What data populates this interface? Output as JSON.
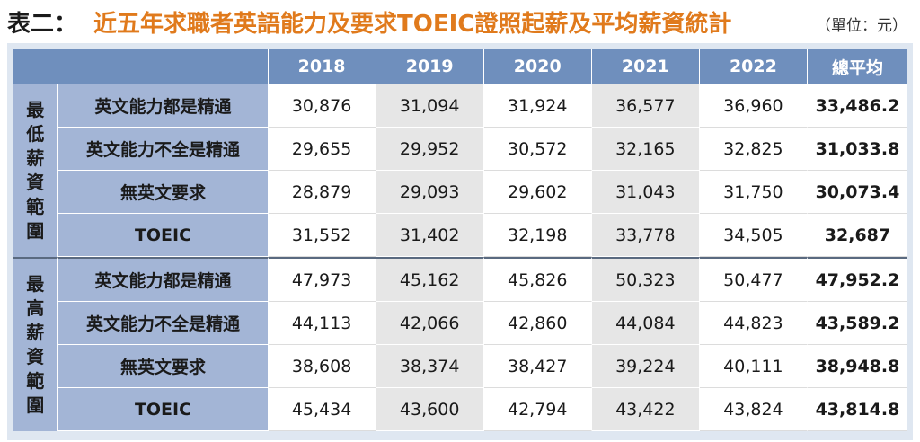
{
  "title": {
    "prefix": "表二：",
    "main": "近五年求職者英語能力及要求TOEIC證照起薪及平均薪資統計",
    "unit": "（單位：元）"
  },
  "colors": {
    "title_accent": "#e07a1c",
    "header_bg": "#6f8fbd",
    "label_bg": "#a3b5d6",
    "alt_cell_bg": "#e6e6e6"
  },
  "table": {
    "columns": [
      "2018",
      "2019",
      "2020",
      "2021",
      "2022",
      "總平均"
    ],
    "groups": [
      {
        "label_chars": [
          "最",
          "低",
          "薪",
          "資",
          "範",
          "圍"
        ],
        "rows": [
          {
            "label": "英文能力都是精通",
            "values": [
              "30,876",
              "31,094",
              "31,924",
              "36,577",
              "36,960"
            ],
            "avg": "33,486.2"
          },
          {
            "label": "英文能力不全是精通",
            "values": [
              "29,655",
              "29,952",
              "30,572",
              "32,165",
              "32,825"
            ],
            "avg": "31,033.8"
          },
          {
            "label": "無英文要求",
            "values": [
              "28,879",
              "29,093",
              "29,602",
              "31,043",
              "31,750"
            ],
            "avg": "30,073.4"
          },
          {
            "label": "TOEIC",
            "values": [
              "31,552",
              "31,402",
              "32,198",
              "33,778",
              "34,505"
            ],
            "avg": "32,687"
          }
        ]
      },
      {
        "label_chars": [
          "最",
          "高",
          "薪",
          "資",
          "範",
          "圍"
        ],
        "rows": [
          {
            "label": "英文能力都是精通",
            "values": [
              "47,973",
              "45,162",
              "45,826",
              "50,323",
              "50,477"
            ],
            "avg": "47,952.2"
          },
          {
            "label": "英文能力不全是精通",
            "values": [
              "44,113",
              "42,066",
              "42,860",
              "44,084",
              "44,823"
            ],
            "avg": "43,589.2"
          },
          {
            "label": "無英文要求",
            "values": [
              "38,608",
              "38,374",
              "38,427",
              "39,224",
              "40,111"
            ],
            "avg": "38,948.8"
          },
          {
            "label": "TOEIC",
            "values": [
              "45,434",
              "43,600",
              "42,794",
              "43,422",
              "43,824"
            ],
            "avg": "43,814.8"
          }
        ]
      }
    ]
  }
}
